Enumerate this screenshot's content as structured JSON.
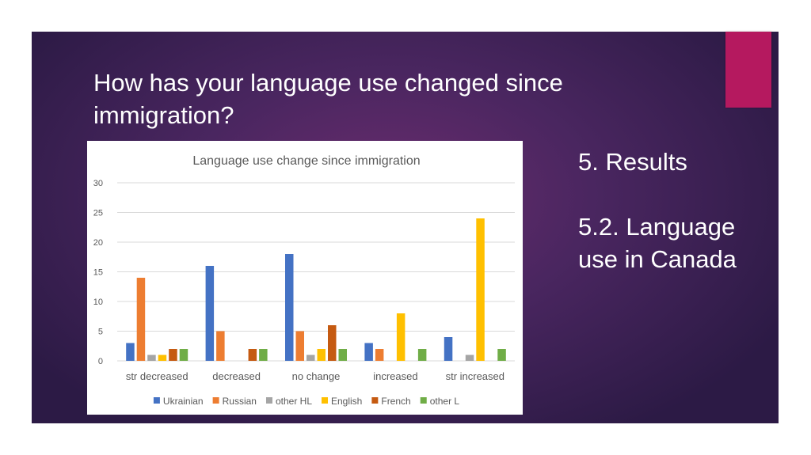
{
  "slide": {
    "title": "How has your language use changed since immigration?",
    "side_heading": "5. Results",
    "side_subheading": "5.2. Language use in Canada"
  },
  "colors": {
    "slide_background": "#4a2660",
    "accent": "#b5195f"
  },
  "chart_data": {
    "type": "bar",
    "title": "Language use change since immigration",
    "xlabel": "",
    "ylabel": "",
    "ylim": [
      0,
      30
    ],
    "yticks": [
      0,
      5,
      10,
      15,
      20,
      25,
      30
    ],
    "grid": true,
    "legend_position": "bottom",
    "categories": [
      "str decreased",
      "decreased",
      "no change",
      "increased",
      "str increased"
    ],
    "series": [
      {
        "name": "Ukrainian",
        "color": "#4472c4",
        "values": [
          3,
          16,
          18,
          3,
          4
        ]
      },
      {
        "name": "Russian",
        "color": "#ed7d31",
        "values": [
          14,
          5,
          5,
          2,
          0
        ]
      },
      {
        "name": "other HL",
        "color": "#a5a5a5",
        "values": [
          1,
          0,
          1,
          0,
          1
        ]
      },
      {
        "name": "English",
        "color": "#ffc000",
        "values": [
          1,
          0,
          2,
          8,
          24
        ]
      },
      {
        "name": "French",
        "color": "#c55a11",
        "values": [
          2,
          2,
          6,
          0,
          0
        ]
      },
      {
        "name": "other L",
        "color": "#70ad47",
        "values": [
          2,
          2,
          2,
          2,
          2
        ]
      }
    ]
  }
}
